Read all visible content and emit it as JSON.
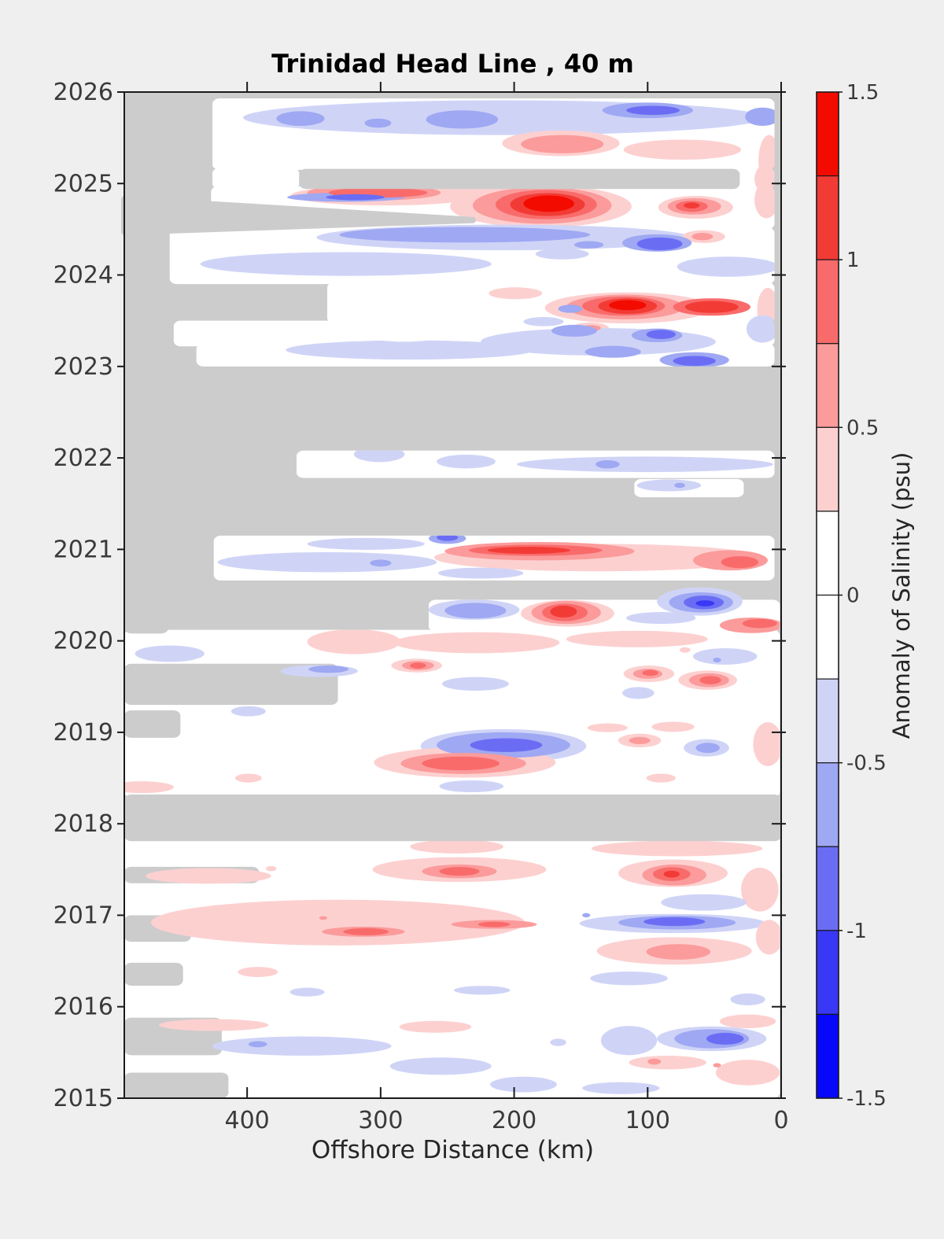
{
  "figure": {
    "background": "#efefef",
    "frame_color": "#1a1a1a",
    "text_color": "#3a3a3a"
  },
  "chart_data": {
    "type": "heatmap",
    "title": "Trinidad Head Line , 40 m",
    "xlabel": "Offshore Distance (km)",
    "ylabel": "",
    "x_axis": {
      "min": 0,
      "max": 492,
      "reversed": true,
      "ticks": [
        400,
        300,
        200,
        100,
        0
      ]
    },
    "y_axis": {
      "min": 2015,
      "max": 2026,
      "ticks": [
        2026,
        2025,
        2024,
        2023,
        2022,
        2021,
        2020,
        2019,
        2018,
        2017,
        2016,
        2015
      ]
    },
    "no_data_color": "#cccccc",
    "colorbar": {
      "label": "Anomaly of Salinity (psu)",
      "range": [
        -1.5,
        1.5
      ],
      "step": 0.25,
      "ticks": [
        1.5,
        1,
        0.5,
        0,
        -0.5,
        -1,
        -1.5
      ],
      "segment_colors_top_to_bottom": [
        "#f40b00",
        "#f23b35",
        "#f96b6b",
        "#fb9b9b",
        "#fdd0d0",
        "#ffffff",
        "#ffffff",
        "#cfd4f7",
        "#9fa8f2",
        "#6a6df4",
        "#3838f5",
        "#0707f9"
      ]
    },
    "value_colors": {
      "0": "#ffffff",
      "0.35": "#fdd0d0",
      "0.6": "#fb9b9b",
      "0.85": "#f96b6b",
      "1.1": "#f23b35",
      "1.4": "#f40b00",
      "-0.35": "#cfd4f7",
      "-0.6": "#9fa8f2",
      "-0.85": "#6a6df4",
      "-1.1": "#3838f5",
      "-1.4": "#0707f9"
    },
    "data_regions": [
      [
        426,
        5,
        2025.93,
        2025.15
      ],
      [
        426,
        361,
        2025.17,
        2024.94
      ],
      [
        36,
        5,
        2025.17,
        2024.94
      ],
      [
        427,
        5,
        2024.97,
        2024.5
      ],
      [
        458,
        5,
        2024.52,
        2023.9
      ],
      [
        340,
        5,
        2023.92,
        2023.47
      ],
      [
        455,
        5,
        2023.5,
        2023.22
      ],
      [
        438,
        5,
        2023.25,
        2023.0
      ],
      [
        363,
        5,
        2022.08,
        2021.78
      ],
      [
        110,
        28,
        2021.77,
        2021.57
      ],
      [
        425,
        5,
        2021.15,
        2020.66
      ],
      [
        264,
        1,
        2020.45,
        2020.1
      ],
      [
        492,
        1,
        2020.12,
        2018.29
      ],
      [
        492,
        1,
        2017.97,
        2015.0
      ]
    ],
    "missing_patches_under": [
      [
        492,
        332,
        2019.75,
        2019.3
      ],
      [
        492,
        450,
        2019.24,
        2018.94
      ],
      [
        492,
        459,
        2020.21,
        2020.08
      ],
      [
        492,
        391,
        2017.53,
        2017.35
      ],
      [
        492,
        442,
        2017.0,
        2016.71
      ],
      [
        492,
        448,
        2016.48,
        2016.23
      ],
      [
        492,
        419,
        2015.88,
        2015.47
      ],
      [
        492,
        414,
        2015.28,
        2015.0
      ]
    ],
    "missing_patches_over": [
      [
        361,
        31,
        2025.16,
        2024.94
      ],
      [
        492,
        0,
        2018.32,
        2017.81
      ]
    ],
    "missing_polys_over": [
      [
        [
          492,
          2024.83
        ],
        [
          231,
          2024.6
        ],
        [
          492,
          2024.47
        ]
      ]
    ],
    "blobs": [
      [
        208,
        2025.72,
        195,
        0.19,
        -0.35
      ],
      [
        360,
        2025.71,
        18,
        0.08,
        -0.6
      ],
      [
        302,
        2025.66,
        10,
        0.05,
        -0.6
      ],
      [
        239,
        2025.7,
        27,
        0.1,
        -0.6
      ],
      [
        100,
        2025.8,
        34,
        0.085,
        -0.6
      ],
      [
        96,
        2025.8,
        20,
        0.05,
        -0.85
      ],
      [
        14,
        2025.73,
        13,
        0.1,
        -0.6
      ],
      [
        164,
        2025.58,
        32,
        0.09,
        -0.35
      ],
      [
        165,
        2025.44,
        44,
        0.14,
        0.35
      ],
      [
        164,
        2025.43,
        31,
        0.1,
        0.6
      ],
      [
        74,
        2025.37,
        44,
        0.11,
        0.35
      ],
      [
        9,
        2025.25,
        8,
        0.28,
        0.35
      ],
      [
        11,
        2025.05,
        9,
        0.16,
        0.35
      ],
      [
        360,
        2024.68,
        6,
        0.04,
        -0.35
      ],
      [
        296,
        2024.87,
        71,
        0.11,
        0.35
      ],
      [
        305,
        2024.9,
        50,
        0.085,
        0.6
      ],
      [
        302,
        2024.9,
        37,
        0.055,
        0.85
      ],
      [
        326,
        2024.85,
        44,
        0.05,
        -0.6
      ],
      [
        319,
        2024.85,
        22,
        0.033,
        -0.85
      ],
      [
        237,
        2024.95,
        29,
        0.07,
        0.35
      ],
      [
        180,
        2024.75,
        68,
        0.23,
        0.35
      ],
      [
        179,
        2024.76,
        52,
        0.2,
        0.6
      ],
      [
        176,
        2024.77,
        38,
        0.16,
        0.85
      ],
      [
        175,
        2024.77,
        28,
        0.125,
        1.1
      ],
      [
        174,
        2024.78,
        19,
        0.09,
        1.4
      ],
      [
        64,
        2024.74,
        28,
        0.125,
        0.35
      ],
      [
        65,
        2024.75,
        20,
        0.09,
        0.6
      ],
      [
        67,
        2024.75,
        12,
        0.06,
        0.85
      ],
      [
        67,
        2024.76,
        6,
        0.033,
        1.1
      ],
      [
        11,
        2024.82,
        9,
        0.2,
        0.35
      ],
      [
        237,
        2024.44,
        94,
        0.085,
        -0.6
      ],
      [
        208,
        2024.41,
        140,
        0.14,
        -0.35
      ],
      [
        93,
        2024.35,
        26,
        0.095,
        -0.6
      ],
      [
        91,
        2024.34,
        17,
        0.07,
        -0.85
      ],
      [
        58,
        2024.42,
        16,
        0.07,
        0.35
      ],
      [
        59,
        2024.42,
        8,
        0.04,
        0.6
      ],
      [
        144,
        2024.33,
        11,
        0.04,
        -0.6
      ],
      [
        326,
        2024.12,
        109,
        0.13,
        -0.35
      ],
      [
        40,
        2024.09,
        38,
        0.11,
        -0.35
      ],
      [
        164,
        2024.23,
        20,
        0.06,
        -0.35
      ],
      [
        199,
        2023.8,
        20,
        0.065,
        0.35
      ],
      [
        115,
        2023.64,
        62,
        0.17,
        0.35
      ],
      [
        117,
        2023.65,
        44,
        0.135,
        0.6
      ],
      [
        118,
        2023.66,
        31,
        0.105,
        0.85
      ],
      [
        115,
        2023.66,
        22,
        0.085,
        1.1
      ],
      [
        115,
        2023.67,
        14,
        0.055,
        1.4
      ],
      [
        52,
        2023.65,
        29,
        0.095,
        0.85
      ],
      [
        52,
        2023.65,
        20,
        0.065,
        1.1
      ],
      [
        158,
        2023.63,
        9,
        0.045,
        -0.6
      ],
      [
        10,
        2023.62,
        8,
        0.24,
        0.35
      ],
      [
        143,
        2023.42,
        14,
        0.06,
        0.35
      ],
      [
        142,
        2023.42,
        7,
        0.033,
        0.6
      ],
      [
        178,
        2023.49,
        15,
        0.05,
        -0.35
      ],
      [
        155,
        2023.39,
        17,
        0.065,
        -0.6
      ],
      [
        93,
        2023.34,
        19,
        0.075,
        -0.6
      ],
      [
        90,
        2023.35,
        11,
        0.05,
        -0.85
      ],
      [
        137,
        2023.27,
        88,
        0.15,
        -0.35
      ],
      [
        278,
        2023.18,
        93,
        0.105,
        -0.35
      ],
      [
        282,
        2023.37,
        32,
        0.1,
        0
      ],
      [
        126,
        2023.16,
        21,
        0.065,
        -0.6
      ],
      [
        65,
        2023.06,
        16,
        0.055,
        -0.85
      ],
      [
        65,
        2023.07,
        26,
        0.085,
        -0.6
      ],
      [
        14,
        2023.41,
        12,
        0.15,
        -0.35
      ],
      [
        301,
        2022.04,
        19,
        0.085,
        -0.35
      ],
      [
        236,
        2021.96,
        22,
        0.075,
        -0.35
      ],
      [
        102,
        2021.93,
        96,
        0.085,
        -0.35
      ],
      [
        130,
        2021.93,
        9,
        0.045,
        -0.6
      ],
      [
        84,
        2021.7,
        24,
        0.065,
        -0.35
      ],
      [
        76,
        2021.7,
        4,
        0.028,
        -0.6
      ],
      [
        340,
        2020.86,
        82,
        0.11,
        -0.35
      ],
      [
        311,
        2021.06,
        44,
        0.065,
        -0.35
      ],
      [
        250,
        2021.12,
        14,
        0.06,
        -0.6
      ],
      [
        250,
        2021.13,
        8,
        0.038,
        -0.85
      ],
      [
        300,
        2020.85,
        8,
        0.038,
        -0.6
      ],
      [
        137,
        2020.91,
        123,
        0.15,
        0.35
      ],
      [
        181,
        2020.98,
        71,
        0.1,
        0.6
      ],
      [
        184,
        2020.99,
        50,
        0.06,
        0.85
      ],
      [
        189,
        2020.99,
        31,
        0.038,
        1.1
      ],
      [
        38,
        2020.88,
        28,
        0.11,
        0.6
      ],
      [
        31,
        2020.86,
        14,
        0.065,
        0.85
      ],
      [
        225,
        2020.74,
        32,
        0.06,
        -0.35
      ],
      [
        230,
        2020.34,
        34,
        0.11,
        -0.35
      ],
      [
        229,
        2020.33,
        23,
        0.085,
        -0.6
      ],
      [
        160,
        2020.3,
        35,
        0.145,
        0.35
      ],
      [
        161,
        2020.31,
        26,
        0.125,
        0.6
      ],
      [
        162,
        2020.31,
        17,
        0.095,
        0.85
      ],
      [
        163,
        2020.32,
        10,
        0.065,
        1.1
      ],
      [
        90,
        2020.25,
        26,
        0.065,
        -0.35
      ],
      [
        22,
        2020.17,
        24,
        0.085,
        0.6
      ],
      [
        16,
        2020.19,
        13,
        0.05,
        0.85
      ],
      [
        458,
        2019.86,
        26,
        0.09,
        -0.35
      ],
      [
        320,
        2019.99,
        35,
        0.135,
        0.35
      ],
      [
        228,
        2019.98,
        62,
        0.115,
        0.35
      ],
      [
        108,
        2020.02,
        53,
        0.09,
        0.35
      ],
      [
        273,
        2019.73,
        19,
        0.075,
        0.35
      ],
      [
        272,
        2019.73,
        12,
        0.05,
        0.6
      ],
      [
        272,
        2019.73,
        6,
        0.033,
        0.85
      ],
      [
        346,
        2019.67,
        29,
        0.065,
        -0.35
      ],
      [
        339,
        2019.69,
        15,
        0.04,
        -0.6
      ],
      [
        229,
        2019.53,
        25,
        0.075,
        -0.35
      ],
      [
        399,
        2019.23,
        13,
        0.055,
        -0.35
      ],
      [
        99,
        2019.64,
        19,
        0.09,
        0.35
      ],
      [
        100,
        2019.64,
        11,
        0.055,
        0.6
      ],
      [
        98,
        2019.65,
        6,
        0.033,
        0.85
      ],
      [
        55,
        2019.57,
        22,
        0.105,
        0.35
      ],
      [
        54,
        2019.57,
        15,
        0.075,
        0.6
      ],
      [
        53,
        2019.57,
        8,
        0.045,
        0.85
      ],
      [
        107,
        2019.43,
        12,
        0.065,
        -0.35
      ],
      [
        42,
        2019.83,
        24,
        0.09,
        -0.35
      ],
      [
        48,
        2019.79,
        3,
        0.026,
        -0.6
      ],
      [
        72,
        2019.9,
        4,
        0.03,
        0.35
      ],
      [
        130,
        2019.05,
        15,
        0.048,
        0.35
      ],
      [
        81,
        2019.06,
        16,
        0.055,
        0.35
      ],
      [
        208,
        2018.85,
        62,
        0.185,
        -0.35
      ],
      [
        208,
        2018.86,
        50,
        0.14,
        -0.6
      ],
      [
        206,
        2018.86,
        27,
        0.075,
        -0.85
      ],
      [
        237,
        2018.67,
        68,
        0.165,
        0.35
      ],
      [
        238,
        2018.66,
        47,
        0.115,
        0.6
      ],
      [
        240,
        2018.66,
        29,
        0.075,
        0.85
      ],
      [
        106,
        2018.91,
        16,
        0.075,
        0.35
      ],
      [
        106,
        2018.91,
        8,
        0.04,
        0.6
      ],
      [
        56,
        2018.83,
        17,
        0.095,
        -0.35
      ],
      [
        55,
        2018.83,
        9,
        0.055,
        -0.6
      ],
      [
        10,
        2018.87,
        11,
        0.24,
        0.35
      ],
      [
        90,
        2018.5,
        11,
        0.048,
        0.35
      ],
      [
        399,
        2018.5,
        10,
        0.048,
        0.35
      ],
      [
        479,
        2018.4,
        24,
        0.065,
        0.35
      ],
      [
        232,
        2018.41,
        24,
        0.065,
        -0.35
      ],
      [
        243,
        2017.75,
        35,
        0.075,
        0.35
      ],
      [
        78,
        2017.73,
        64,
        0.085,
        0.35
      ],
      [
        429,
        2017.43,
        47,
        0.085,
        0.35
      ],
      [
        241,
        2017.5,
        65,
        0.135,
        0.35
      ],
      [
        241,
        2017.48,
        28,
        0.075,
        0.6
      ],
      [
        241,
        2017.48,
        15,
        0.048,
        0.85
      ],
      [
        382,
        2017.51,
        4,
        0.028,
        0.35
      ],
      [
        81,
        2017.46,
        41,
        0.15,
        0.35
      ],
      [
        80,
        2017.44,
        24,
        0.115,
        0.6
      ],
      [
        82,
        2017.45,
        14,
        0.075,
        0.85
      ],
      [
        82,
        2017.45,
        6,
        0.038,
        1.1
      ],
      [
        16,
        2017.28,
        14,
        0.24,
        0.35
      ],
      [
        58,
        2017.14,
        32,
        0.09,
        -0.35
      ],
      [
        332,
        2016.92,
        140,
        0.25,
        0.35
      ],
      [
        313,
        2016.82,
        31,
        0.055,
        0.6
      ],
      [
        311,
        2016.82,
        17,
        0.04,
        0.85
      ],
      [
        215,
        2016.9,
        32,
        0.048,
        0.6
      ],
      [
        215,
        2016.9,
        12,
        0.03,
        0.85
      ],
      [
        343,
        2016.97,
        3,
        0.02,
        0.6
      ],
      [
        81,
        2016.91,
        70,
        0.105,
        -0.35
      ],
      [
        78,
        2016.92,
        44,
        0.075,
        -0.6
      ],
      [
        80,
        2016.93,
        23,
        0.048,
        -0.85
      ],
      [
        80,
        2016.61,
        58,
        0.15,
        0.35
      ],
      [
        77,
        2016.6,
        24,
        0.085,
        0.6
      ],
      [
        9,
        2016.76,
        10,
        0.19,
        0.35
      ],
      [
        146,
        2017.0,
        3,
        0.024,
        -0.6
      ],
      [
        392,
        2016.38,
        15,
        0.055,
        0.35
      ],
      [
        355,
        2016.16,
        13,
        0.048,
        -0.35
      ],
      [
        224,
        2016.18,
        21,
        0.048,
        -0.35
      ],
      [
        114,
        2016.31,
        29,
        0.075,
        -0.35
      ],
      [
        25,
        2016.08,
        13,
        0.065,
        -0.35
      ],
      [
        425,
        2015.8,
        41,
        0.065,
        0.35
      ],
      [
        259,
        2015.78,
        27,
        0.065,
        0.35
      ],
      [
        25,
        2015.84,
        21,
        0.075,
        0.35
      ],
      [
        359,
        2015.57,
        67,
        0.105,
        -0.35
      ],
      [
        392,
        2015.59,
        7,
        0.033,
        -0.6
      ],
      [
        114,
        2015.63,
        21,
        0.16,
        -0.35
      ],
      [
        52,
        2015.65,
        41,
        0.135,
        -0.35
      ],
      [
        52,
        2015.65,
        28,
        0.105,
        -0.6
      ],
      [
        42,
        2015.65,
        14,
        0.065,
        -0.85
      ],
      [
        167,
        2015.61,
        6,
        0.04,
        -0.35
      ],
      [
        255,
        2015.35,
        38,
        0.095,
        -0.35
      ],
      [
        85,
        2015.39,
        29,
        0.075,
        0.35
      ],
      [
        95,
        2015.4,
        5,
        0.033,
        0.6
      ],
      [
        48,
        2015.36,
        3,
        0.024,
        0.6
      ],
      [
        25,
        2015.28,
        24,
        0.14,
        0.35
      ],
      [
        193,
        2015.15,
        25,
        0.085,
        -0.35
      ],
      [
        120,
        2015.11,
        29,
        0.065,
        -0.35
      ]
    ],
    "island_blobs": [
      [
        61,
        2020.43,
        32,
        0.155,
        -0.35
      ],
      [
        60,
        2020.42,
        24,
        0.11,
        -0.6
      ],
      [
        58,
        2020.42,
        15,
        0.075,
        -0.85
      ],
      [
        57,
        2020.41,
        7,
        0.033,
        -1.1
      ]
    ]
  }
}
